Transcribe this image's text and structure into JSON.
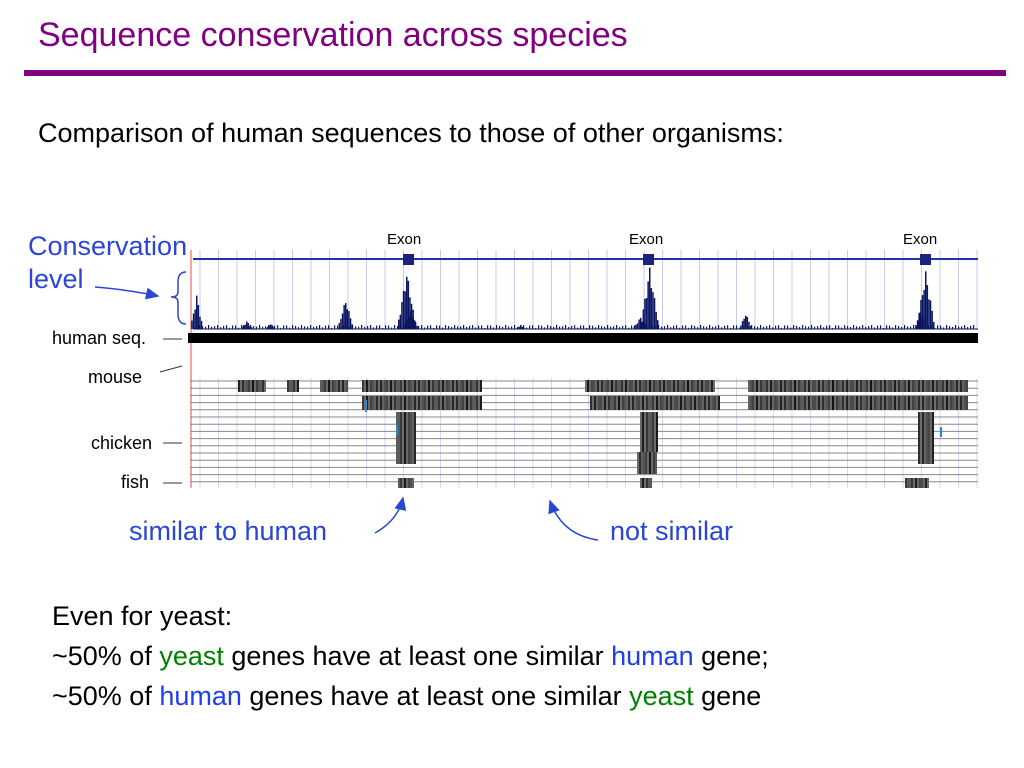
{
  "slide": {
    "title": "Sequence conservation across species",
    "subtitle": "Comparison of human sequences to those of other organisms:",
    "conservation_label": "Conservation level"
  },
  "browser": {
    "exon_labels": [
      "Exon",
      "Exon",
      "Exon"
    ],
    "tracks": {
      "human": "human seq.",
      "mouse": "mouse",
      "chicken": "chicken",
      "fish": "fish"
    }
  },
  "annotations": {
    "similar": "similar to human",
    "not_similar": "not similar"
  },
  "bottom_text": {
    "heading": "Even for yeast:",
    "line1": {
      "prefix": "~50% of ",
      "word1": "yeast",
      "middle": " genes have at least one similar ",
      "word2": "human",
      "suffix": " gene;"
    },
    "line2": {
      "prefix": "~50% of ",
      "word1": "human",
      "middle": " genes have at least one similar ",
      "word2": "yeast",
      "suffix": " gene"
    }
  },
  "colors": {
    "title": "#800080",
    "annotation": "#2b46d6",
    "yeast": "#008000",
    "human": "#1f3ef0",
    "conservation": "#0b1560"
  }
}
